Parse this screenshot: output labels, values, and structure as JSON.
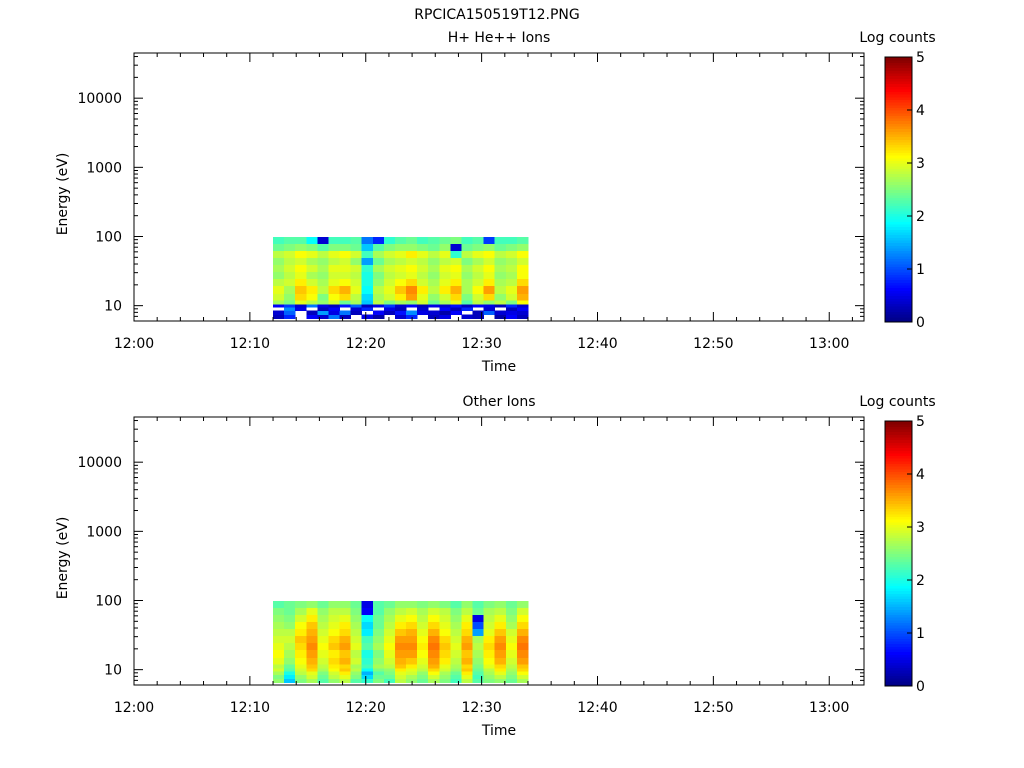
{
  "figure_title": "RPCICA150519T12.PNG",
  "colors": {
    "colormap": [
      "#00007f",
      "#0000ff",
      "#007fff",
      "#00ffff",
      "#7fff7f",
      "#ffff00",
      "#ff7f00",
      "#ff0000",
      "#7f0000"
    ]
  },
  "chart_data": [
    {
      "type": "heatmap",
      "title": "H+ He++ Ions",
      "xlabel": "Time",
      "ylabel": "Energy (eV)",
      "x_ticks": [
        "12:00",
        "12:10",
        "12:20",
        "12:30",
        "12:40",
        "12:50",
        "13:00"
      ],
      "x_range": [
        "12:00",
        "13:03"
      ],
      "y_scale": "log",
      "y_ticks": [
        10,
        100,
        1000,
        10000
      ],
      "y_range": [
        6,
        45000
      ],
      "colorbar": {
        "label": "Log counts",
        "range": [
          0,
          5
        ],
        "ticks": [
          0,
          1,
          2,
          3,
          4,
          5
        ]
      },
      "data_time_span": [
        "12:12",
        "12:34"
      ],
      "time_bin_minutes": 1.1,
      "energy_bins_eV": [
        7,
        8,
        9,
        10,
        11,
        13,
        17,
        22,
        28,
        35,
        44,
        56,
        70,
        88
      ],
      "log_counts": [
        [
          0.3,
          0.8,
          null,
          0.6,
          0.4,
          1.2,
          0.3,
          null,
          0.5,
          0.2,
          null,
          0.4,
          0.8,
          null,
          0.3,
          0.5,
          null,
          0.4,
          0.3,
          null,
          0.2,
          0.6,
          0.3
        ],
        [
          0.4,
          1.1,
          null,
          0.3,
          1.4,
          0.5,
          1.2,
          0.3,
          null,
          0.6,
          0.3,
          0.7,
          1.3,
          0.5,
          0.4,
          0.2,
          0.6,
          null,
          0.3,
          1.1,
          0.4,
          0.5,
          0.4
        ],
        [
          null,
          1.3,
          0.5,
          null,
          0.3,
          0.6,
          null,
          0.4,
          0.8,
          null,
          0.5,
          0.3,
          null,
          0.4,
          null,
          0.6,
          0.3,
          0.8,
          null,
          0.4,
          null,
          0.3,
          0.6
        ],
        [
          0.6,
          0.9,
          0.4,
          1.2,
          0.5,
          0.3,
          0.7,
          1.1,
          0.3,
          0.5,
          0.9,
          0.4,
          0.6,
          0.3,
          0.5,
          0.4,
          0.7,
          0.3,
          0.6,
          0.5,
          0.3,
          0.8,
          0.4
        ],
        [
          2.7,
          2.5,
          3.0,
          2.8,
          2.6,
          2.9,
          2.4,
          2.7,
          1.6,
          2.8,
          2.5,
          2.7,
          2.6,
          2.9,
          2.4,
          2.7,
          3.0,
          2.3,
          2.8,
          2.6,
          2.8,
          2.5,
          3.1
        ],
        [
          2.9,
          2.6,
          3.3,
          3.1,
          2.5,
          3.1,
          3.3,
          2.8,
          1.7,
          2.7,
          2.9,
          3.2,
          3.6,
          3.0,
          2.6,
          2.9,
          3.3,
          2.5,
          2.9,
          3.3,
          2.6,
          2.9,
          3.5
        ],
        [
          3.0,
          2.7,
          3.4,
          3.2,
          2.8,
          3.3,
          3.5,
          3.0,
          1.9,
          2.8,
          3.0,
          3.4,
          3.7,
          3.2,
          2.8,
          3.2,
          3.5,
          2.7,
          3.1,
          3.6,
          2.8,
          3.0,
          3.6
        ],
        [
          2.8,
          2.9,
          3.2,
          2.9,
          2.7,
          3.0,
          3.1,
          2.9,
          2.0,
          2.6,
          2.9,
          3.1,
          3.3,
          2.9,
          2.7,
          3.0,
          3.2,
          2.7,
          2.9,
          3.2,
          2.7,
          2.8,
          3.3
        ],
        [
          2.6,
          2.8,
          3.0,
          2.7,
          2.6,
          2.9,
          2.9,
          2.8,
          2.0,
          2.5,
          2.8,
          2.9,
          3.0,
          2.8,
          2.6,
          2.9,
          3.0,
          2.6,
          2.8,
          3.0,
          2.6,
          2.7,
          3.1
        ],
        [
          2.7,
          2.9,
          3.1,
          2.9,
          2.7,
          3.0,
          3.0,
          2.9,
          2.1,
          2.7,
          2.9,
          3.0,
          3.1,
          2.9,
          2.7,
          3.0,
          3.1,
          2.7,
          2.9,
          3.1,
          2.7,
          2.8,
          3.1
        ],
        [
          2.6,
          2.8,
          2.9,
          2.7,
          2.6,
          2.8,
          2.9,
          2.6,
          1.4,
          2.4,
          2.7,
          2.8,
          2.9,
          2.8,
          2.6,
          2.8,
          2.9,
          2.5,
          2.7,
          2.9,
          2.6,
          2.7,
          2.9
        ],
        [
          2.8,
          2.9,
          3.1,
          3.0,
          2.8,
          3.0,
          3.1,
          2.9,
          2.2,
          2.7,
          2.9,
          3.0,
          3.2,
          3.0,
          2.8,
          3.0,
          2.1,
          2.8,
          3.0,
          3.1,
          2.8,
          2.9,
          3.1
        ],
        [
          2.4,
          2.5,
          2.6,
          2.5,
          2.3,
          2.5,
          2.5,
          2.4,
          1.6,
          2.3,
          2.5,
          2.6,
          2.6,
          2.5,
          2.4,
          2.6,
          0.4,
          2.4,
          2.5,
          2.6,
          2.4,
          2.5,
          2.6
        ],
        [
          2.2,
          2.3,
          2.3,
          1.9,
          0.4,
          2.2,
          2.2,
          2.3,
          1.2,
          0.8,
          2.1,
          2.3,
          2.4,
          2.2,
          2.3,
          2.4,
          2.5,
          2.2,
          2.3,
          0.9,
          2.2,
          2.2,
          2.3
        ]
      ]
    },
    {
      "type": "heatmap",
      "title": "Other Ions",
      "xlabel": "Time",
      "ylabel": "Energy (eV)",
      "x_ticks": [
        "12:00",
        "12:10",
        "12:20",
        "12:30",
        "12:40",
        "12:50",
        "13:00"
      ],
      "x_range": [
        "12:00",
        "13:03"
      ],
      "y_scale": "log",
      "y_ticks": [
        10,
        100,
        1000,
        10000
      ],
      "y_range": [
        6,
        45000
      ],
      "colorbar": {
        "label": "Log counts",
        "range": [
          0,
          5
        ],
        "ticks": [
          0,
          1,
          2,
          3,
          4,
          5
        ]
      },
      "data_time_span": [
        "12:12",
        "12:34"
      ],
      "time_bin_minutes": 1.1,
      "energy_bins_eV": [
        7,
        8,
        9,
        10,
        11,
        13,
        17,
        22,
        28,
        35,
        44,
        56,
        70,
        88
      ],
      "log_counts": [
        [
          2.6,
          1.6,
          2.5,
          2.7,
          2.3,
          2.6,
          2.8,
          2.3,
          2.1,
          2.5,
          2.2,
          2.8,
          2.6,
          2.4,
          2.7,
          2.5,
          2.2,
          2.8,
          2.3,
          2.5,
          2.6,
          2.4,
          2.7
        ],
        [
          2.5,
          1.8,
          2.6,
          2.9,
          2.4,
          2.8,
          3.0,
          2.5,
          1.7,
          2.4,
          2.4,
          2.9,
          2.7,
          2.5,
          2.9,
          2.6,
          2.3,
          3.0,
          2.2,
          2.6,
          2.8,
          2.5,
          2.9
        ],
        [
          2.7,
          2.0,
          2.8,
          3.0,
          2.5,
          2.9,
          3.2,
          2.6,
          1.5,
          2.3,
          2.5,
          3.0,
          2.9,
          2.6,
          3.1,
          2.7,
          2.4,
          3.2,
          2.3,
          2.7,
          3.0,
          2.6,
          3.1
        ],
        [
          2.9,
          2.3,
          2.9,
          3.3,
          2.7,
          3.1,
          3.4,
          2.8,
          1.9,
          2.5,
          2.6,
          3.2,
          3.0,
          2.8,
          3.3,
          2.9,
          2.6,
          3.4,
          2.4,
          2.8,
          3.2,
          2.7,
          3.3
        ],
        [
          2.8,
          2.4,
          3.0,
          3.4,
          2.8,
          3.2,
          3.3,
          2.7,
          2.2,
          2.7,
          2.8,
          3.4,
          3.2,
          2.9,
          3.5,
          3.0,
          2.7,
          3.3,
          2.5,
          3.0,
          3.3,
          2.8,
          3.4
        ],
        [
          3.0,
          2.6,
          3.1,
          3.5,
          2.9,
          3.3,
          3.5,
          2.9,
          2.1,
          2.6,
          2.9,
          3.5,
          3.4,
          3.0,
          3.6,
          3.2,
          2.8,
          3.5,
          2.6,
          3.1,
          3.5,
          2.9,
          3.6
        ],
        [
          3.1,
          2.7,
          3.2,
          3.6,
          3.0,
          3.2,
          3.4,
          2.8,
          2.0,
          2.5,
          3.0,
          3.6,
          3.6,
          3.1,
          3.7,
          3.3,
          2.9,
          3.4,
          2.7,
          3.2,
          3.6,
          3.0,
          3.7
        ],
        [
          3.0,
          2.8,
          3.3,
          3.7,
          3.1,
          3.4,
          3.6,
          3.0,
          2.3,
          2.7,
          3.1,
          3.7,
          3.7,
          3.2,
          3.8,
          3.4,
          3.0,
          3.6,
          2.8,
          3.3,
          3.7,
          3.1,
          3.8
        ],
        [
          2.9,
          2.9,
          3.4,
          3.6,
          3.0,
          3.3,
          3.5,
          2.9,
          2.2,
          2.6,
          3.0,
          3.6,
          3.6,
          3.1,
          3.7,
          3.3,
          2.9,
          3.5,
          2.7,
          3.2,
          3.6,
          3.0,
          3.7
        ],
        [
          2.8,
          2.8,
          3.2,
          3.5,
          2.9,
          3.1,
          3.3,
          2.8,
          1.8,
          2.5,
          2.9,
          3.4,
          3.5,
          3.0,
          3.5,
          3.1,
          2.8,
          3.3,
          1.4,
          3.0,
          3.4,
          2.9,
          3.5
        ],
        [
          2.7,
          2.6,
          3.1,
          3.4,
          2.8,
          3.0,
          3.2,
          2.7,
          1.7,
          2.4,
          2.8,
          3.2,
          3.3,
          2.9,
          3.3,
          3.0,
          2.7,
          3.2,
          1.0,
          2.9,
          3.2,
          2.7,
          3.3
        ],
        [
          2.6,
          2.5,
          2.9,
          3.2,
          2.7,
          2.9,
          3.0,
          2.6,
          1.9,
          2.4,
          2.7,
          3.0,
          3.1,
          2.8,
          3.1,
          2.9,
          2.6,
          3.0,
          0.5,
          2.8,
          3.0,
          2.6,
          3.1
        ],
        [
          2.5,
          2.4,
          2.7,
          3.0,
          2.6,
          2.8,
          2.8,
          2.5,
          0.6,
          2.3,
          2.6,
          2.8,
          2.9,
          2.7,
          2.9,
          2.8,
          2.5,
          2.8,
          2.4,
          2.7,
          2.8,
          2.5,
          2.9
        ],
        [
          2.3,
          2.4,
          2.5,
          2.6,
          2.4,
          2.6,
          2.6,
          2.4,
          0.5,
          2.3,
          2.4,
          2.6,
          2.6,
          2.5,
          2.6,
          2.5,
          2.3,
          2.6,
          2.3,
          2.5,
          2.6,
          2.4,
          2.6
        ]
      ]
    }
  ]
}
